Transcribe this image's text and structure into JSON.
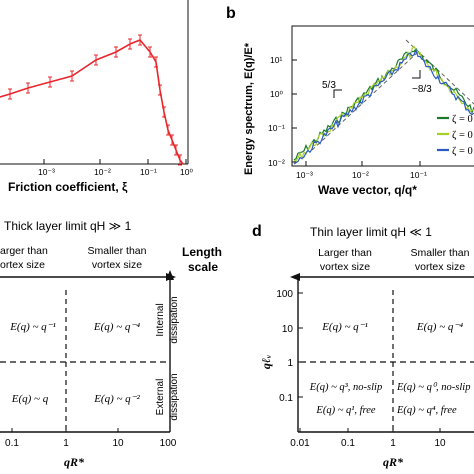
{
  "panel_labels": {
    "b": "b",
    "d": "d"
  },
  "panel_a": {
    "xlabel": "Friction coefficient, ξ",
    "xticks": [
      "10⁻³",
      "10⁻²",
      "10⁻¹",
      "10⁰"
    ],
    "line_color": "#e8262c"
  },
  "panel_b": {
    "ylabel": "Energy spectrum, E(q)/E*",
    "xlabel": "Wave vector, q/q*",
    "xticks": [
      "10⁻³",
      "10⁻²",
      "10⁻¹"
    ],
    "yticks": [
      "10¹",
      "10⁰",
      "10⁻¹",
      "10⁻²"
    ],
    "slope_left": "5/3",
    "slope_right": "−8/3",
    "legend": [
      {
        "label": "ζ = 0",
        "color": "#1a7a2a"
      },
      {
        "label": "ζ = 0",
        "color": "#a7cf2a"
      },
      {
        "label": "ζ = 0",
        "color": "#2a5bc4"
      }
    ]
  },
  "panel_c": {
    "title": "Thick layer limit  qH ≫ 1",
    "col_left": [
      "arger than",
      "ortex size"
    ],
    "col_right": [
      "Smaller than",
      "vortex size"
    ],
    "axis_title": [
      "Length",
      "scale"
    ],
    "side_top": [
      "Internal",
      "dissipation"
    ],
    "side_bottom": [
      "External",
      "dissipation"
    ],
    "cells": {
      "top_left": "E(q) ~ q⁻¹",
      "top_right": "E(q) ~ q⁻⁴",
      "bottom_left": "E(q) ~ q",
      "bottom_right": "E(q) ~ q⁻²"
    },
    "xticks": [
      "0.1",
      "1",
      "10",
      "100"
    ],
    "xlabel": "qR*"
  },
  "panel_d": {
    "title": "Thin layer limit  qH ≪ 1",
    "col_left": [
      "Larger than",
      "vortex size"
    ],
    "col_right": [
      "Smaller than",
      "vortex size"
    ],
    "ylabel": "qℓᵥ",
    "yticks": [
      "100",
      "10",
      "1",
      "0.1"
    ],
    "cells": {
      "top_left": "E(q) ~ q⁻¹",
      "top_right": "E(q) ~ q⁻⁴",
      "bottom_left_1": "E(q) ~ q³, no-slip",
      "bottom_left_2": "E(q) ~ q¹, free",
      "bottom_right_1": "E(q) ~ q⁰, no-slip",
      "bottom_right_2": "E(q) ~ q⁴, free"
    },
    "xticks": [
      "0.01",
      "0.1",
      "1",
      "10"
    ],
    "xlabel": "qR*"
  }
}
